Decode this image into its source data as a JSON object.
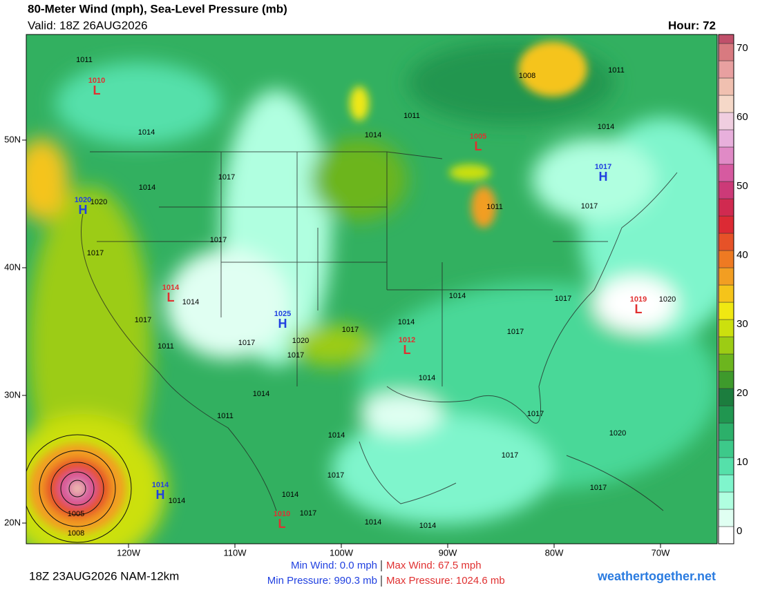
{
  "header": {
    "title": "80-Meter Wind (mph), Sea-Level Pressure (mb)",
    "valid": "Valid: 18Z 26AUG2026",
    "hour": "Hour: 72"
  },
  "map": {
    "lat_labels": [
      "50N",
      "40N",
      "30N",
      "20N"
    ],
    "lon_labels": [
      "120W",
      "110W",
      "100W",
      "90W",
      "80W",
      "70W"
    ],
    "centers": [
      {
        "letter": "L",
        "value": "1010"
      },
      {
        "letter": "L",
        "value": "1005"
      },
      {
        "letter": "H",
        "value": "1017"
      },
      {
        "letter": "H",
        "value": "1020"
      },
      {
        "letter": "L",
        "value": "1014"
      },
      {
        "letter": "H",
        "value": "1025"
      },
      {
        "letter": "L",
        "value": "1012"
      },
      {
        "letter": "L",
        "value": "1019"
      },
      {
        "letter": "H",
        "value": "1014"
      },
      {
        "letter": "L",
        "value": "1010"
      }
    ],
    "isobar_labels": [
      "1011",
      "1014",
      "1017",
      "1014",
      "1020",
      "1017",
      "1017",
      "1014",
      "1017",
      "1011",
      "1017",
      "1020",
      "1017",
      "1017",
      "1014",
      "1014",
      "1017",
      "1020",
      "1017",
      "1014",
      "1014",
      "1011",
      "1014",
      "1017",
      "1020",
      "1017",
      "1017",
      "1017",
      "1014",
      "1017",
      "1014",
      "1014",
      "1014",
      "1005",
      "1008",
      "1011",
      "1014",
      "1008",
      "1011",
      "1014",
      "1017",
      "1011"
    ]
  },
  "colorbar": {
    "ticks": [
      0,
      10,
      20,
      30,
      40,
      50,
      60,
      70
    ],
    "colors": [
      "#ffffff",
      "#e0fff2",
      "#b0ffe0",
      "#7ff5cc",
      "#55e0aa",
      "#3dc98a",
      "#2cb06a",
      "#209650",
      "#1c7d3e",
      "#3e9a2c",
      "#6cb51e",
      "#9ccc14",
      "#cce00e",
      "#f0e812",
      "#f5c41a",
      "#f29e22",
      "#ee7a22",
      "#e65228",
      "#dc2a34",
      "#d02a50",
      "#cc3a78",
      "#d65aa0",
      "#e08ac6",
      "#e8b0dc",
      "#f0cee0",
      "#f5d8c8",
      "#f0c0b0",
      "#e8a0a0",
      "#d87a80",
      "#c0506a",
      "#a03050",
      "#8a1a2a"
    ]
  },
  "footer": {
    "run": "18Z 23AUG2026 NAM-12km",
    "min_wind": "Min Wind:  0.0 mph",
    "max_wind": "Max Wind: 67.5 mph",
    "min_pressure": "Min Pressure: 990.3 mb",
    "max_pressure": "Max Pressure: 1024.6 mb",
    "site": "weathertogether.net"
  }
}
